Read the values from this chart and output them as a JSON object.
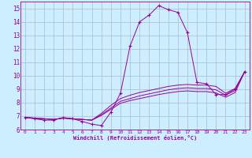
{
  "xlabel": "Windchill (Refroidissement éolien,°C)",
  "x_values": [
    0,
    1,
    2,
    3,
    4,
    5,
    6,
    7,
    8,
    9,
    10,
    11,
    12,
    13,
    14,
    15,
    16,
    17,
    18,
    19,
    20,
    21,
    22,
    23
  ],
  "line1_y": [
    6.9,
    6.8,
    6.7,
    6.7,
    6.9,
    6.8,
    6.6,
    6.4,
    6.3,
    7.3,
    8.7,
    12.2,
    14.0,
    14.5,
    15.2,
    14.9,
    14.7,
    13.2,
    9.5,
    9.4,
    8.6,
    8.6,
    9.0,
    10.3
  ],
  "line2_y": [
    6.9,
    6.85,
    6.8,
    6.75,
    6.85,
    6.8,
    6.75,
    6.7,
    7.2,
    7.8,
    8.3,
    8.55,
    8.75,
    8.9,
    9.05,
    9.2,
    9.3,
    9.35,
    9.3,
    9.3,
    9.2,
    8.7,
    9.05,
    10.3
  ],
  "line3_y": [
    6.9,
    6.85,
    6.8,
    6.75,
    6.85,
    6.8,
    6.75,
    6.7,
    7.1,
    7.6,
    8.1,
    8.3,
    8.5,
    8.65,
    8.8,
    8.95,
    9.05,
    9.1,
    9.05,
    9.05,
    8.95,
    8.55,
    8.9,
    10.3
  ],
  "line4_y": [
    6.9,
    6.85,
    6.8,
    6.75,
    6.85,
    6.8,
    6.75,
    6.7,
    7.05,
    7.5,
    7.95,
    8.15,
    8.3,
    8.45,
    8.6,
    8.72,
    8.82,
    8.87,
    8.82,
    8.82,
    8.72,
    8.4,
    8.75,
    10.3
  ],
  "line_color": "#990099",
  "bg_color": "#cceeff",
  "grid_color": "#aabbcc",
  "ylim": [
    6,
    15.5
  ],
  "xlim": [
    -0.5,
    23.5
  ],
  "yticks": [
    6,
    7,
    8,
    9,
    10,
    11,
    12,
    13,
    14,
    15
  ],
  "xticks": [
    0,
    1,
    2,
    3,
    4,
    5,
    6,
    7,
    8,
    9,
    10,
    11,
    12,
    13,
    14,
    15,
    16,
    17,
    18,
    19,
    20,
    21,
    22,
    23
  ]
}
